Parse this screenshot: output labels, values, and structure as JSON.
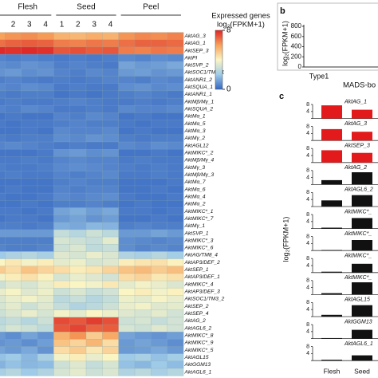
{
  "chart_data": [
    {
      "type": "heatmap",
      "groups": [
        "Flesh",
        "Seed",
        "Peel"
      ],
      "columns": [
        null,
        "2",
        "3",
        "4",
        "1",
        "2",
        "3",
        "4",
        null,
        null,
        null,
        null
      ],
      "rows": [
        "AktAG_3",
        "AktAG_1",
        "AktSEP_3",
        "AktPI",
        "AktSVP_2",
        "AktSOC1/TM3_1",
        "AktANR1_2",
        "AktSQUA_1",
        "AktANR1_1",
        "AktMβ/Mγ_1",
        "AktSQUA_2",
        "AktMα_1",
        "AktMα_5",
        "AktMα_3",
        "AktMγ_2",
        "AktAGL12",
        "AktMIKC*_2",
        "AktMβ/Mγ_4",
        "AktMγ_3",
        "AktMβ/Mγ_3",
        "AktMα_7",
        "AktMα_6",
        "AktMα_4",
        "AktMα_2",
        "AktMIKC*_1",
        "AktMIKC*_7",
        "AktMγ_1",
        "AktSVP_1",
        "AktMIKC*_3",
        "AktMIKC*_6",
        "AktAG/TM8_4",
        "AktAP3/DEF_2",
        "AktSEP_1",
        "AktAP3/DEF_1",
        "AktMIKC*_4",
        "AktAP3/DEF_3",
        "AktSOC1/TM3_2",
        "AktSEP_2",
        "AktSEP_4",
        "AktAG_2",
        "AktAGL6_2",
        "AktMIKC*_8",
        "AktMIKC*_9",
        "AktMIKC*_5",
        "AktAGL15",
        "AktGGM13",
        "AktAGL6_1"
      ],
      "values": [
        [
          6,
          6.2,
          6.3,
          6.1,
          5.6,
          5.5,
          5.7,
          5.6,
          6.2,
          6.4,
          6.3,
          6.5
        ],
        [
          6.8,
          7,
          7.1,
          7,
          6.6,
          6.5,
          6.7,
          6.6,
          6.8,
          7,
          7,
          6.9
        ],
        [
          7.9,
          7.8,
          7.9,
          7.8,
          7.2,
          7.3,
          7.1,
          7.2,
          6.6,
          6.5,
          6.7,
          6.6
        ],
        [
          0.6,
          0.5,
          0.6,
          0.5,
          0.4,
          0.5,
          0.4,
          0.5,
          0.7,
          0.6,
          0.8,
          0.7
        ],
        [
          0.8,
          0.7,
          0.9,
          0.8,
          0.5,
          0.6,
          0.5,
          0.4,
          1.2,
          1,
          1.1,
          1.3
        ],
        [
          0.9,
          1,
          0.8,
          0.9,
          0.6,
          0.5,
          0.7,
          0.6,
          1,
          1.1,
          0.9,
          1
        ],
        [
          0.5,
          0.6,
          0.5,
          0.4,
          0.5,
          0.4,
          0.5,
          0.6,
          0.6,
          0.5,
          0.7,
          0.6
        ],
        [
          0.7,
          0.6,
          0.8,
          0.7,
          0.4,
          0.5,
          0.4,
          0.4,
          0.8,
          0.9,
          0.7,
          0.8
        ],
        [
          0.5,
          0.4,
          0.5,
          0.5,
          0.3,
          0.4,
          0.3,
          0.4,
          0.5,
          0.6,
          0.5,
          0.4
        ],
        [
          0.4,
          0.5,
          0.4,
          0.4,
          0.5,
          0.6,
          0.5,
          0.4,
          0.4,
          0.5,
          0.4,
          0.5
        ],
        [
          0.6,
          0.5,
          0.7,
          0.6,
          0.4,
          0.4,
          0.5,
          0.4,
          0.7,
          0.6,
          0.6,
          0.7
        ],
        [
          0.3,
          0.4,
          0.3,
          0.3,
          0.6,
          0.5,
          0.7,
          0.6,
          0.3,
          0.4,
          0.3,
          0.3
        ],
        [
          0.4,
          0.3,
          0.4,
          0.4,
          0.5,
          0.6,
          0.5,
          0.5,
          0.4,
          0.3,
          0.4,
          0.4
        ],
        [
          0.3,
          0.3,
          0.4,
          0.3,
          0.7,
          0.6,
          0.6,
          0.7,
          0.3,
          0.4,
          0.3,
          0.3
        ],
        [
          0.5,
          0.4,
          0.5,
          0.5,
          0.8,
          0.7,
          0.9,
          0.8,
          0.5,
          0.4,
          0.5,
          0.5
        ],
        [
          0.6,
          0.7,
          0.6,
          0.5,
          0.4,
          0.5,
          0.4,
          0.4,
          0.7,
          0.6,
          0.8,
          0.7
        ],
        [
          0.3,
          0.3,
          0.3,
          0.4,
          0.9,
          1,
          0.8,
          0.9,
          0.3,
          0.3,
          0.4,
          0.3
        ],
        [
          0.4,
          0.4,
          0.5,
          0.4,
          0.6,
          0.7,
          0.6,
          0.6,
          0.4,
          0.5,
          0.4,
          0.4
        ],
        [
          0.5,
          0.4,
          0.4,
          0.5,
          0.7,
          0.8,
          0.7,
          0.6,
          0.5,
          0.4,
          0.5,
          0.4
        ],
        [
          0.4,
          0.5,
          0.4,
          0.4,
          0.6,
          0.5,
          0.6,
          0.7,
          0.4,
          0.4,
          0.5,
          0.4
        ],
        [
          0.3,
          0.3,
          0.3,
          0.3,
          0.5,
          0.6,
          0.5,
          0.5,
          0.3,
          0.3,
          0.3,
          0.4
        ],
        [
          0.3,
          0.4,
          0.3,
          0.3,
          0.6,
          0.5,
          0.6,
          0.6,
          0.3,
          0.3,
          0.4,
          0.3
        ],
        [
          0.4,
          0.3,
          0.3,
          0.4,
          0.7,
          0.6,
          0.7,
          0.8,
          0.4,
          0.3,
          0.3,
          0.4
        ],
        [
          0.3,
          0.3,
          0.4,
          0.3,
          0.5,
          0.5,
          0.6,
          0.5,
          0.3,
          0.4,
          0.3,
          0.3
        ],
        [
          0.4,
          0.4,
          0.3,
          0.4,
          1.2,
          1.4,
          1.1,
          1.3,
          0.4,
          0.4,
          0.3,
          0.4
        ],
        [
          0.3,
          0.4,
          0.4,
          0.3,
          1,
          1.2,
          0.9,
          1.1,
          0.3,
          0.3,
          0.4,
          0.3
        ],
        [
          0.5,
          0.5,
          0.4,
          0.5,
          1.4,
          1.3,
          1.6,
          1.5,
          0.5,
          0.6,
          0.5,
          0.5
        ],
        [
          1,
          1,
          1,
          1,
          2.8,
          2.5,
          3,
          2.6,
          1,
          1,
          1.2,
          1
        ],
        [
          0.5,
          0.5,
          0.5,
          0.5,
          3.2,
          3,
          2.8,
          3.5,
          0.8,
          0.7,
          0.6,
          0.7
        ],
        [
          0.6,
          0.5,
          0.5,
          0.6,
          3,
          3.3,
          2.7,
          2.9,
          0.8,
          0.6,
          0.7,
          0.6
        ],
        [
          2,
          2.3,
          2.5,
          2.2,
          3.4,
          3.2,
          3.6,
          3.3,
          2.4,
          2.2,
          2.5,
          2.1
        ],
        [
          4,
          4.3,
          3.8,
          4.2,
          3.5,
          3.7,
          3.2,
          3.4,
          4.2,
          4.4,
          4.5,
          4.1
        ],
        [
          5,
          4.6,
          5.2,
          4.8,
          4.6,
          4.2,
          4.4,
          4.8,
          5.2,
          5.4,
          5,
          5.3
        ],
        [
          3.8,
          4.2,
          4.5,
          4.1,
          3.2,
          3.6,
          3.4,
          3.1,
          4.6,
          4.8,
          4.3,
          4.5
        ],
        [
          3,
          3.4,
          3.2,
          3.6,
          4.2,
          4,
          3.8,
          4.3,
          3.5,
          3.8,
          3.6,
          3.3
        ],
        [
          3.6,
          3.9,
          3.4,
          3.7,
          3,
          3.3,
          2.9,
          3.1,
          4,
          4.2,
          3.8,
          4.1
        ],
        [
          3.3,
          3.6,
          3.8,
          3.5,
          2.6,
          2.9,
          2.5,
          2.8,
          3.7,
          3.5,
          3.9,
          3.6
        ],
        [
          3.2,
          3.5,
          3,
          3.4,
          2.8,
          2.4,
          2.6,
          3,
          3.6,
          3.8,
          3.4,
          3.5
        ],
        [
          3,
          3.3,
          3.6,
          3.2,
          3.8,
          3.5,
          4,
          3.7,
          3.4,
          3.2,
          3.5,
          3.1
        ],
        [
          2.6,
          2.8,
          2.5,
          3,
          7.4,
          7.2,
          7.6,
          7.3,
          3,
          3.2,
          2.8,
          3.1
        ],
        [
          2.8,
          3.2,
          3,
          2.7,
          7.2,
          7.5,
          7,
          7.1,
          3.2,
          3,
          3.4,
          3.1
        ],
        [
          1,
          0.8,
          1.2,
          0.9,
          5.6,
          6.2,
          5,
          5.8,
          1.2,
          1,
          0.9,
          1.1
        ],
        [
          0.9,
          1,
          0.8,
          1.1,
          5.2,
          4.8,
          5.5,
          4.6,
          1,
          1.2,
          1,
          0.8
        ],
        [
          1.2,
          1,
          1.3,
          0.9,
          4.6,
          5,
          4.3,
          4.8,
          1,
          1.1,
          1.3,
          1
        ],
        [
          1.8,
          2,
          1.6,
          2.2,
          3.8,
          4.2,
          3.6,
          4,
          2,
          2.2,
          1.8,
          2.1
        ],
        [
          1.5,
          1.8,
          1.6,
          1.7,
          3,
          3.4,
          2.8,
          3.2,
          1.8,
          1.6,
          2,
          1.7
        ],
        [
          2.2,
          2.5,
          2,
          2.4,
          3.2,
          3.5,
          3,
          3.3,
          2.4,
          2.6,
          2.2,
          2.5
        ]
      ],
      "colorbar_title": "Expressed genes",
      "colorbar_label": "log₂(FPKM+1)",
      "zlim": [
        0,
        8
      ],
      "zticks": [
        0,
        8
      ],
      "colormap": [
        "#3566c0",
        "#9fcbe8",
        "#fbf5c4",
        "#f7a15a",
        "#dd2526"
      ]
    },
    {
      "type": "bar",
      "label": "b",
      "ylabel": "log₂(FPKM+1)",
      "categories": [
        "Type1"
      ],
      "xlabel": "MADS-bo",
      "ylim": [
        0,
        800
      ],
      "yticks": [
        0,
        200,
        400,
        600,
        800
      ]
    },
    {
      "type": "bar_panels",
      "label": "c",
      "ylabel": "log₂(FPKM+1)",
      "categories": [
        "Flesh",
        "Seed"
      ],
      "ylim": [
        0,
        8
      ],
      "yticks": [
        0,
        4,
        8
      ],
      "panels": [
        {
          "name": "AktAG_1",
          "color": "#e31a1c",
          "values": [
            7.5,
            5
          ]
        },
        {
          "name": "AktAG_3",
          "color": "#e31a1c",
          "values": [
            6.5,
            5
          ]
        },
        {
          "name": "AktSEP_3",
          "color": "#e31a1c",
          "values": [
            7,
            5.5
          ]
        },
        {
          "name": "AktAG_2",
          "color": "#111111",
          "values": [
            2.5,
            7
          ]
        },
        {
          "name": "AktAGL6_2",
          "color": "#111111",
          "values": [
            3.5,
            6.5
          ]
        },
        {
          "name": "AktMIKC*_",
          "color": "#111111",
          "values": [
            0.5,
            6
          ]
        },
        {
          "name": "AktMIKC*_",
          "color": "#111111",
          "values": [
            0.3,
            6
          ]
        },
        {
          "name": "AktMIKC*_",
          "color": "#111111",
          "values": [
            0.5,
            5
          ]
        },
        {
          "name": "AktMIKC*_",
          "color": "#111111",
          "values": [
            0.8,
            7
          ]
        },
        {
          "name": "AktAGL15",
          "color": "#111111",
          "values": [
            1,
            6.5
          ]
        },
        {
          "name": "AktGGM13",
          "color": "#111111",
          "values": [
            0.3,
            5
          ]
        },
        {
          "name": "AktAGL6_1",
          "color": "#111111",
          "values": [
            0.5,
            3
          ]
        }
      ]
    }
  ]
}
